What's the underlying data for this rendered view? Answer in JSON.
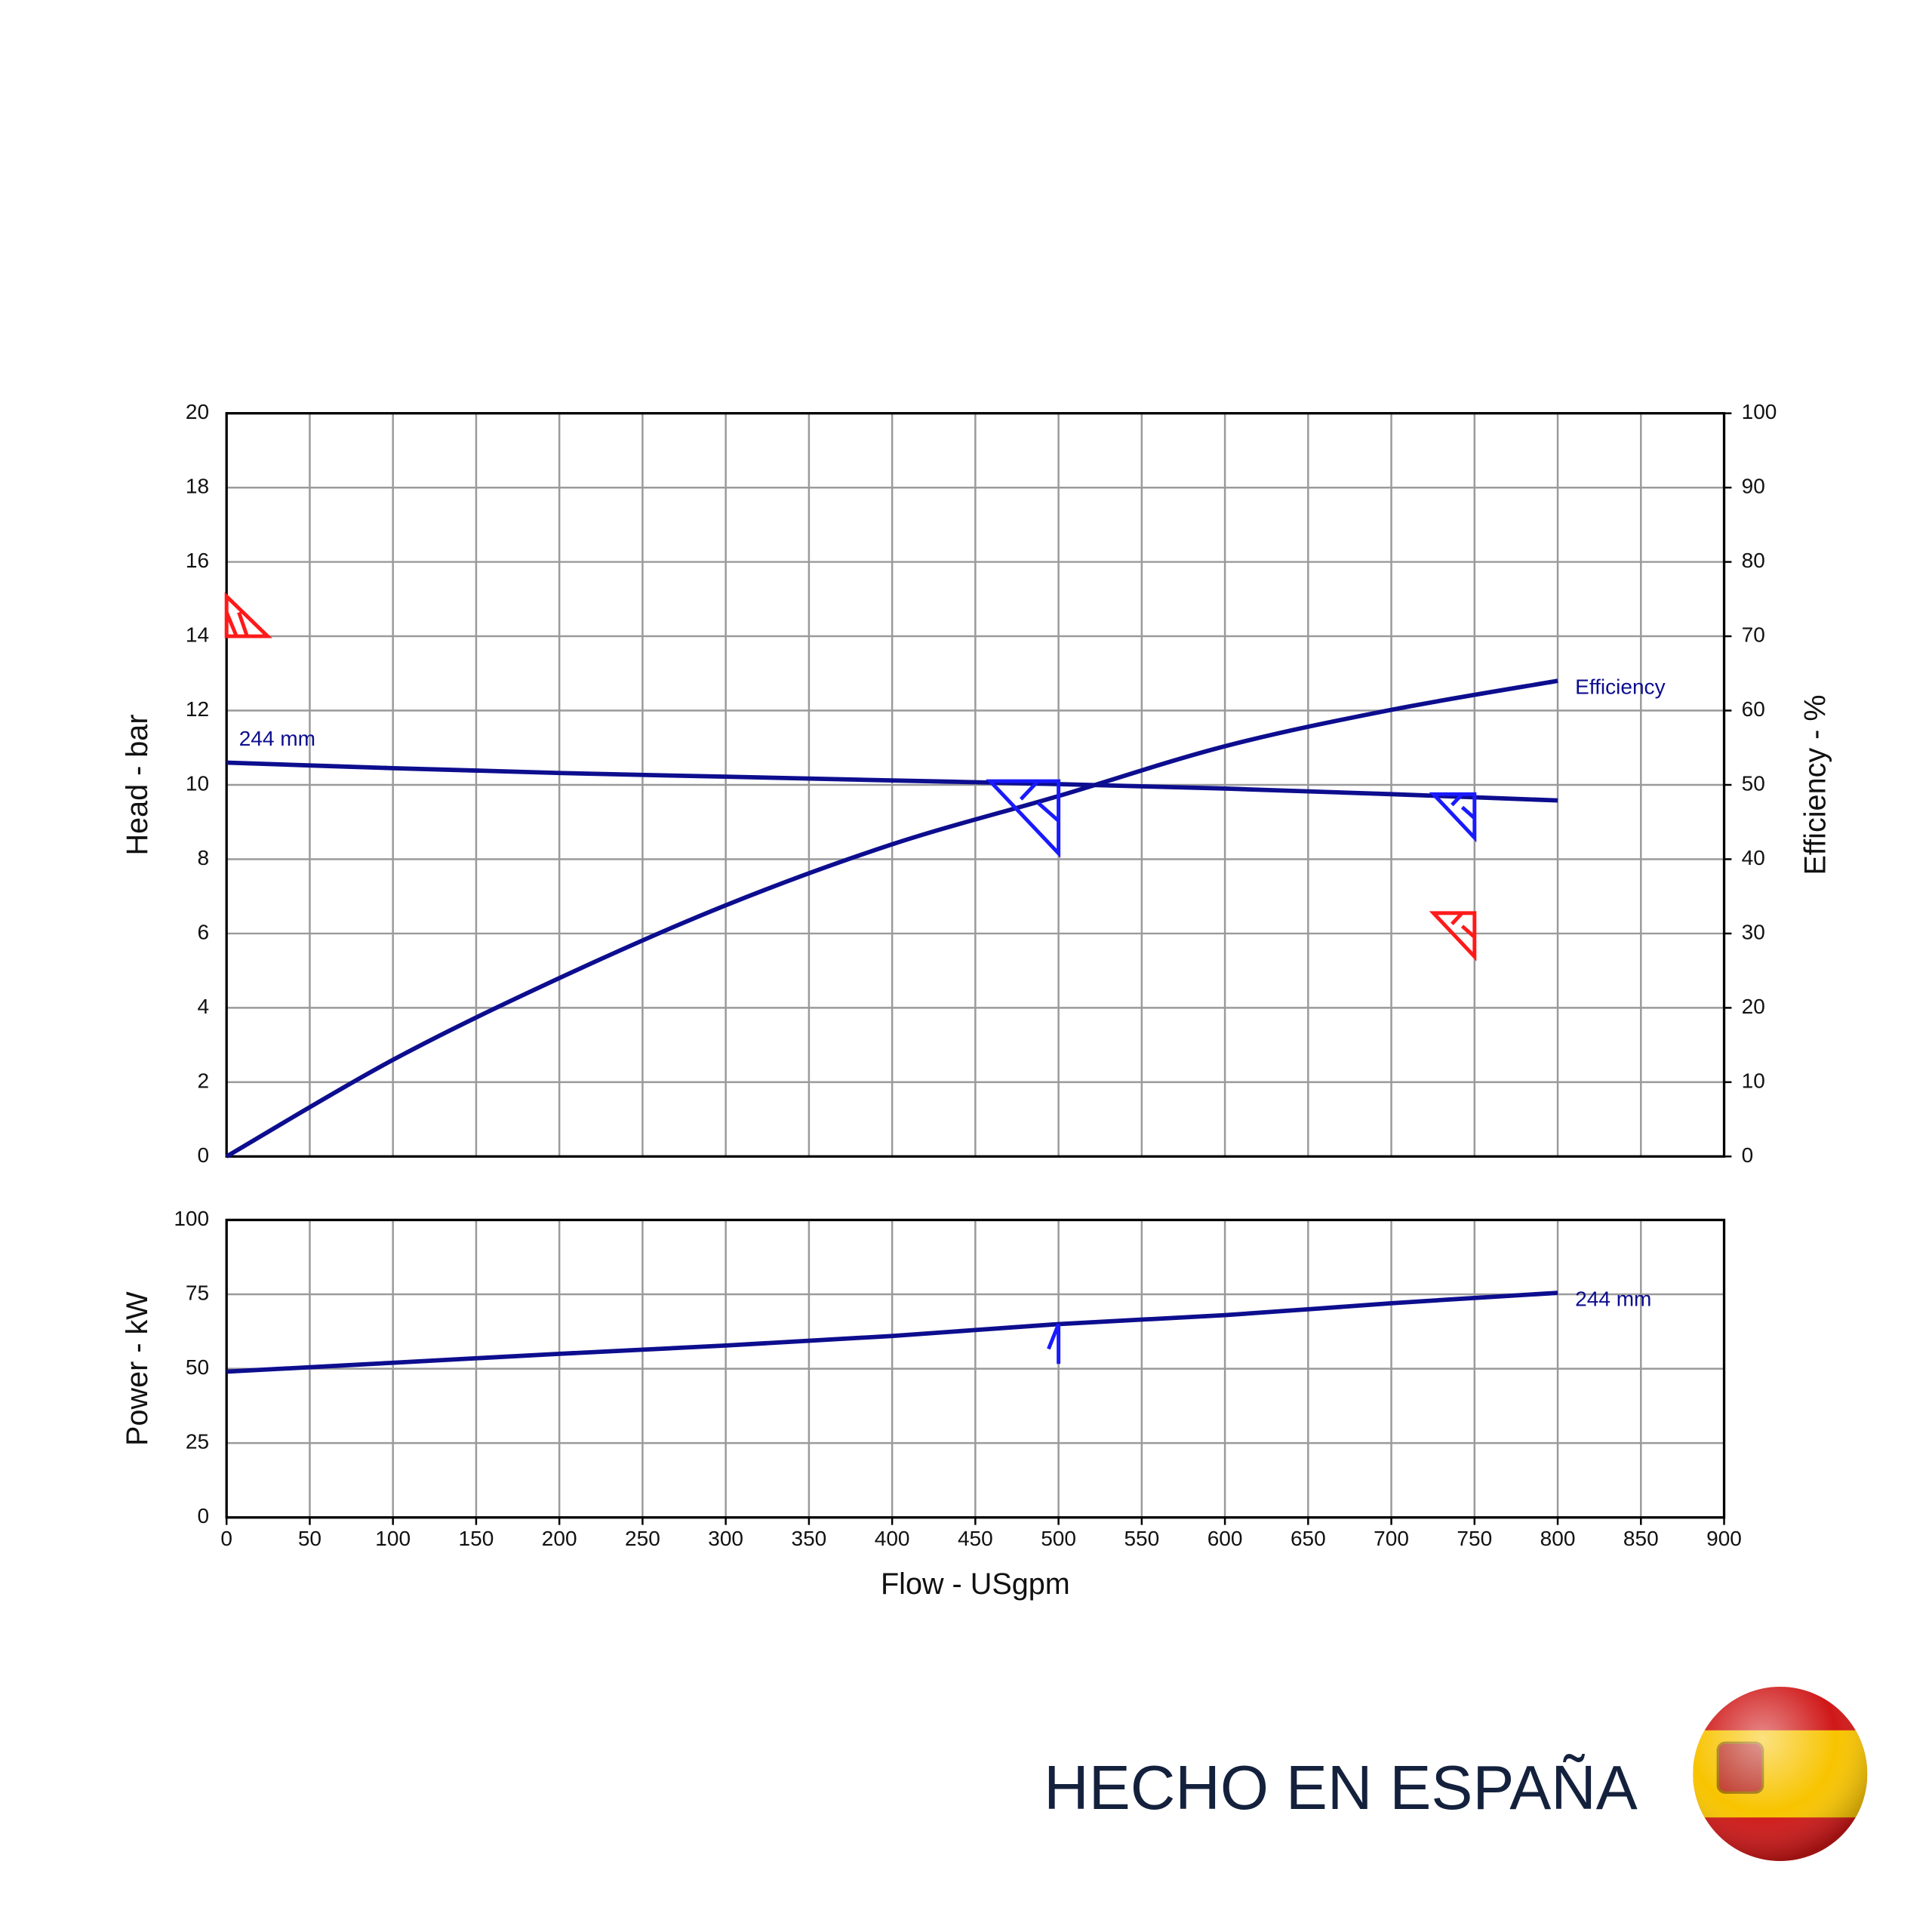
{
  "chart_data": [
    {
      "type": "line",
      "x": [
        0,
        100,
        200,
        300,
        400,
        500,
        600,
        700,
        800
      ],
      "ylabel": "Head - bar",
      "y2label": "Efficiency - %",
      "ylim": [
        0,
        20
      ],
      "yticks": [
        0,
        2,
        4,
        6,
        8,
        10,
        12,
        14,
        16,
        18,
        20
      ],
      "y2lim": [
        0,
        100
      ],
      "y2ticks": [
        0,
        10,
        20,
        30,
        40,
        50,
        60,
        70,
        80,
        90,
        100
      ],
      "grid": true,
      "series": [
        {
          "name": "244 mm",
          "color": "#0d0d8f",
          "label_position": "start",
          "values": [
            10.6,
            10.45,
            10.32,
            10.22,
            10.12,
            10.02,
            9.9,
            9.75,
            9.58
          ]
        },
        {
          "name": "Efficiency",
          "color": "#0d0d8f",
          "axis": "y2",
          "label_position": "end",
          "values": [
            0,
            13,
            24,
            33.8,
            42,
            48.5,
            55.2,
            60.1,
            64
          ]
        }
      ],
      "markers": [
        {
          "x": 0,
          "y": 14,
          "color": "#ff1a1a",
          "shape": "triangle-up-right"
        },
        {
          "x": 500,
          "y": 10.1,
          "color": "#1a1aff",
          "shape": "triangle-down-left-large"
        },
        {
          "x": 750,
          "y": 9.75,
          "color": "#1a1aff",
          "shape": "triangle-down-left"
        },
        {
          "x": 750,
          "y": 6.55,
          "color": "#ff1a1a",
          "shape": "triangle-down-left"
        }
      ]
    },
    {
      "type": "line",
      "x": [
        0,
        100,
        200,
        300,
        400,
        500,
        600,
        700,
        800
      ],
      "ylabel": "Power - kW",
      "xlabel": "Flow - USgpm",
      "xlim": [
        0,
        900
      ],
      "xticks": [
        0,
        50,
        100,
        150,
        200,
        250,
        300,
        350,
        400,
        450,
        500,
        550,
        600,
        650,
        700,
        750,
        800,
        850,
        900
      ],
      "ylim": [
        0,
        100
      ],
      "yticks": [
        0,
        25,
        50,
        75,
        100
      ],
      "grid": true,
      "series": [
        {
          "name": "244 mm",
          "color": "#0d0d8f",
          "label_position": "end",
          "values": [
            49,
            52,
            55,
            57.8,
            61,
            65,
            68,
            72,
            75.5
          ]
        }
      ],
      "markers": [
        {
          "x": 500,
          "y": 65,
          "color": "#1a1aff",
          "shape": "arrow-up"
        }
      ]
    }
  ],
  "footer": {
    "text": "HECHO EN ESPAÑA"
  }
}
